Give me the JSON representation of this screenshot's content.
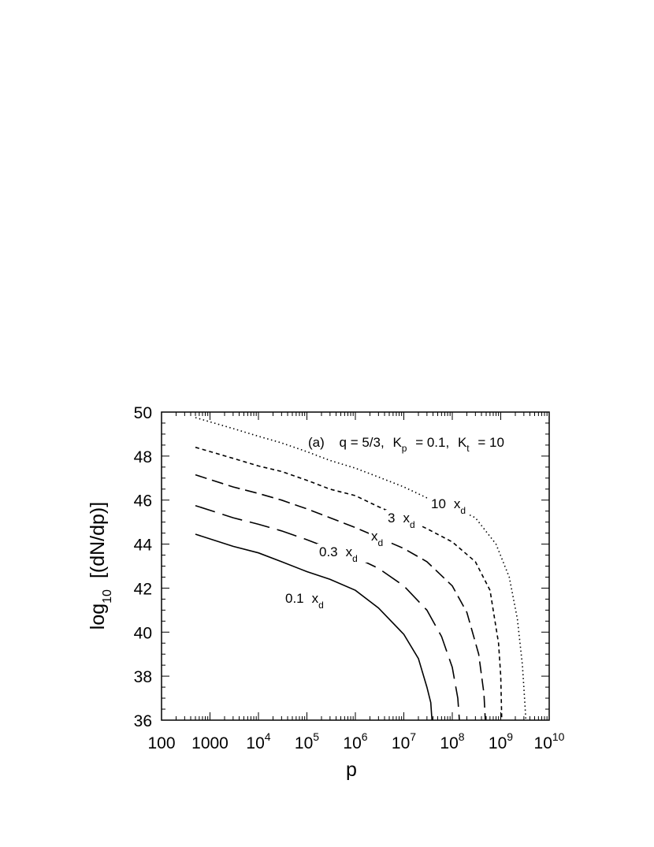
{
  "chart_data": {
    "type": "line",
    "annotation": {
      "prefix": "(a)",
      "q": "q = 5/3,",
      "kp": "K",
      "kp_sub": "p",
      "kp_val": "= 0.1,",
      "kt": "K",
      "kt_sub": "t",
      "kt_val": "= 10"
    },
    "xlabel": "p",
    "ylabel": {
      "prefix": "log",
      "sub": "10",
      "rest": "[(dN/dp)]"
    },
    "x_scale": "log",
    "xlim": [
      100,
      10000000000
    ],
    "ylim": [
      36,
      50
    ],
    "x_ticks": [
      {
        "base": "100",
        "exp": ""
      },
      {
        "base": "1000",
        "exp": ""
      },
      {
        "base": "10",
        "exp": "4"
      },
      {
        "base": "10",
        "exp": "5"
      },
      {
        "base": "10",
        "exp": "6"
      },
      {
        "base": "10",
        "exp": "7"
      },
      {
        "base": "10",
        "exp": "8"
      },
      {
        "base": "10",
        "exp": "9"
      },
      {
        "base": "10",
        "exp": "10"
      }
    ],
    "y_ticks": [
      "36",
      "38",
      "40",
      "42",
      "44",
      "46",
      "48",
      "50"
    ],
    "series": [
      {
        "label": "0.1",
        "label_sub": "d",
        "dash": "none",
        "points": [
          [
            500,
            44.45
          ],
          [
            3000,
            43.9
          ],
          [
            10000,
            43.6
          ],
          [
            30000,
            43.2
          ],
          [
            100000,
            42.75
          ],
          [
            300000,
            42.4
          ],
          [
            1000000,
            41.9
          ],
          [
            3000000,
            41.1
          ],
          [
            10000000,
            39.9
          ],
          [
            20000000,
            38.8
          ],
          [
            30000000,
            37.5
          ],
          [
            36000000,
            36.8
          ],
          [
            38000000,
            36.0
          ]
        ]
      },
      {
        "label": "0.3",
        "label_sub": "d",
        "dash": "26 10",
        "points": [
          [
            500,
            45.75
          ],
          [
            3000,
            45.2
          ],
          [
            10000,
            44.9
          ],
          [
            30000,
            44.6
          ],
          [
            100000,
            44.2
          ],
          [
            300000,
            43.8
          ],
          [
            1000000,
            43.4
          ],
          [
            3000000,
            42.9
          ],
          [
            10000000,
            42.1
          ],
          [
            30000000,
            41.0
          ],
          [
            60000000,
            39.8
          ],
          [
            100000000,
            38.4
          ],
          [
            130000000,
            37.0
          ],
          [
            140000000,
            36.0
          ]
        ]
      },
      {
        "label": "",
        "label_sub": "d",
        "dash": "15 7",
        "points": [
          [
            500,
            47.15
          ],
          [
            3000,
            46.6
          ],
          [
            10000,
            46.3
          ],
          [
            30000,
            46.0
          ],
          [
            100000,
            45.6
          ],
          [
            300000,
            45.2
          ],
          [
            1000000,
            44.75
          ],
          [
            3000000,
            44.3
          ],
          [
            10000000,
            43.8
          ],
          [
            30000000,
            43.2
          ],
          [
            100000000,
            42.1
          ],
          [
            200000000,
            40.9
          ],
          [
            350000000,
            39.0
          ],
          [
            450000000,
            37.2
          ],
          [
            480000000,
            36.0
          ]
        ]
      },
      {
        "label": "3",
        "label_sub": "d",
        "dash": "5 4",
        "points": [
          [
            500,
            48.4
          ],
          [
            3000,
            47.9
          ],
          [
            10000,
            47.55
          ],
          [
            30000,
            47.3
          ],
          [
            100000,
            46.9
          ],
          [
            300000,
            46.5
          ],
          [
            1000000,
            46.2
          ],
          [
            3000000,
            45.7
          ],
          [
            10000000,
            45.2
          ],
          [
            30000000,
            44.7
          ],
          [
            100000000,
            44.1
          ],
          [
            300000000,
            43.2
          ],
          [
            600000000,
            41.9
          ],
          [
            900000000,
            39.5
          ],
          [
            1000000000,
            38.0
          ],
          [
            1050000000,
            36.0
          ]
        ]
      },
      {
        "label": "10",
        "label_sub": "d",
        "dash": "1.5 3.5",
        "points": [
          [
            500,
            49.75
          ],
          [
            3000,
            49.25
          ],
          [
            10000,
            48.9
          ],
          [
            30000,
            48.6
          ],
          [
            100000,
            48.2
          ],
          [
            300000,
            47.8
          ],
          [
            1000000,
            47.45
          ],
          [
            3000000,
            47.05
          ],
          [
            10000000,
            46.6
          ],
          [
            30000000,
            46.1
          ],
          [
            100000000,
            45.7
          ],
          [
            300000000,
            45.2
          ],
          [
            800000000,
            44.0
          ],
          [
            1500000000,
            42.5
          ],
          [
            2200000000,
            40.6
          ],
          [
            2800000000,
            38.5
          ],
          [
            3100000000,
            37.0
          ],
          [
            3300000000,
            36.0
          ]
        ]
      }
    ],
    "x_symbol": "x"
  }
}
